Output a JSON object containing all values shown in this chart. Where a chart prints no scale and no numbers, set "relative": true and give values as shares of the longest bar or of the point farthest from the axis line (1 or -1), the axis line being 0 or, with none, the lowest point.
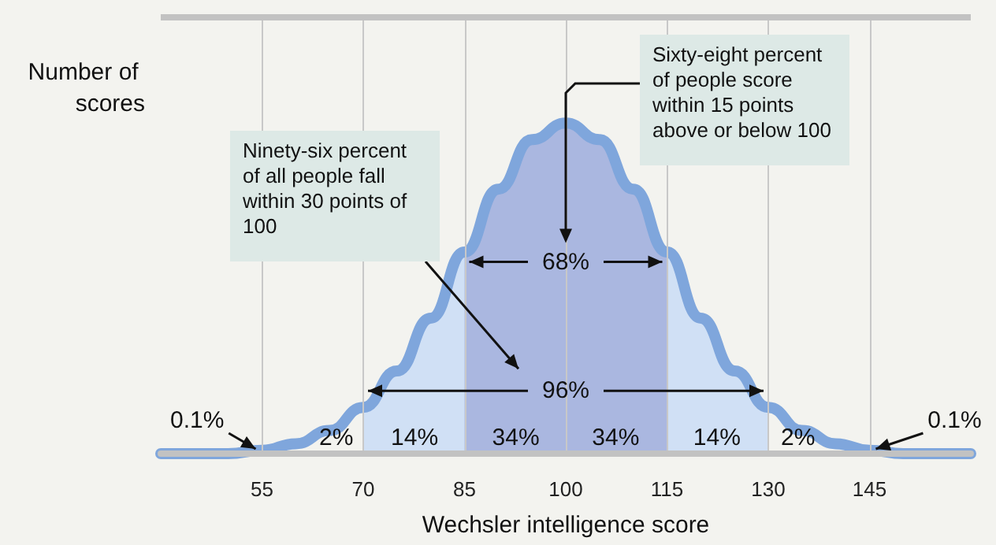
{
  "chart_data": {
    "type": "line",
    "relative": true,
    "xlabel": "Wechsler intelligence score",
    "ylabel": "Number of scores",
    "x": [
      40,
      45,
      50,
      55,
      60,
      65,
      70,
      75,
      80,
      85,
      90,
      95,
      100,
      105,
      110,
      115,
      120,
      125,
      130,
      135,
      140,
      145,
      150,
      155,
      160
    ],
    "series": [
      {
        "color": "#7fa6dc",
        "values": [
          0,
          0,
          0,
          0.01,
          0.03,
          0.07,
          0.14,
          0.25,
          0.41,
          0.61,
          0.8,
          0.95,
          1,
          0.95,
          0.8,
          0.61,
          0.41,
          0.25,
          0.14,
          0.07,
          0.03,
          0.01,
          0,
          0,
          0
        ]
      }
    ],
    "xlim": [
      40,
      160
    ],
    "xticks": [
      55,
      70,
      85,
      100,
      115,
      130,
      145
    ],
    "grid": "x",
    "bands": [
      {
        "axis": "x",
        "from": 85,
        "to": 115,
        "color": "#aab7e0"
      },
      {
        "axis": "x",
        "from": 70,
        "to": 130,
        "color": "#d0e0f5"
      }
    ],
    "annotations": [
      "68%",
      "96%",
      "0.1%",
      "2%",
      "14%",
      "34%",
      "34%",
      "14%",
      "2%",
      "0.1%",
      "Sixty-eight percent of people score within 15 points above or below 100",
      "Ninety-six percent of all people fall within 30 points of 100"
    ]
  }
}
